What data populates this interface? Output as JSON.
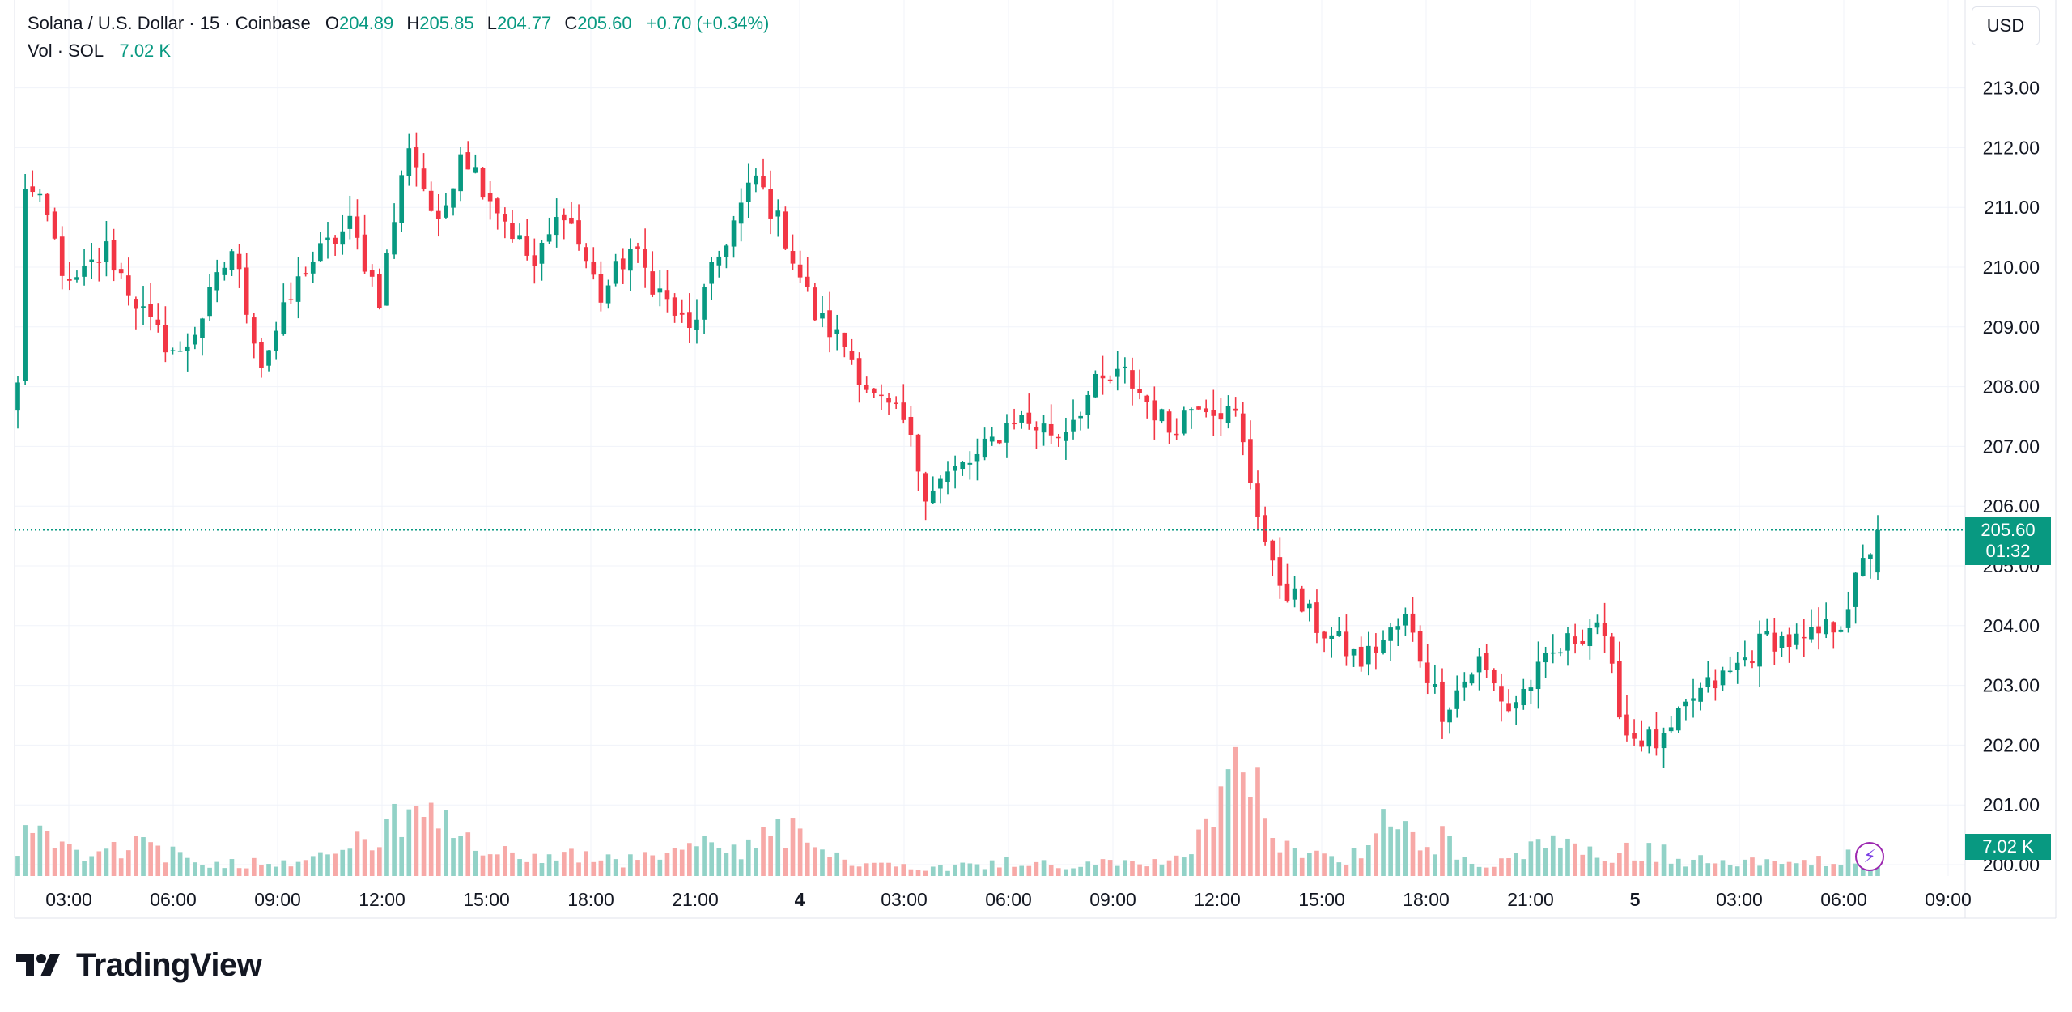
{
  "legend": {
    "symbol": "Solana / U.S. Dollar · 15 · Coinbase",
    "o_label": "O",
    "o_value": "204.89",
    "h_label": "H",
    "h_value": "205.85",
    "l_label": "L",
    "l_value": "204.77",
    "c_label": "C",
    "c_value": "205.60",
    "change": "+0.70 (+0.34%)",
    "vol_label": "Vol · SOL",
    "vol_value": "7.02 K"
  },
  "currency_button": "USD",
  "last_price": {
    "price": "205.60",
    "countdown": "01:32"
  },
  "volume_tag": "7.02 K",
  "brand": "TradingView",
  "colors": {
    "up": "#089981",
    "down": "#F23645",
    "up_vol": "#92D2C7",
    "down_vol": "#F7A9A7",
    "grid": "#F0F3FA"
  },
  "chart_data": {
    "type": "candlestick",
    "interval": "15",
    "y_ticks": [
      "213.00",
      "212.00",
      "211.00",
      "210.00",
      "209.00",
      "208.00",
      "207.00",
      "206.00",
      "205.00",
      "204.00",
      "203.00",
      "202.00",
      "201.00",
      "200.00"
    ],
    "ylim": [
      199.8,
      213.9
    ],
    "x_ticks": [
      "03:00",
      "06:00",
      "09:00",
      "12:00",
      "15:00",
      "18:00",
      "21:00",
      "4",
      "03:00",
      "06:00",
      "09:00",
      "12:00",
      "15:00",
      "18:00",
      "21:00",
      "5",
      "03:00",
      "06:00",
      "09:00"
    ],
    "bold_x_ticks": [
      "4",
      "5"
    ],
    "close_anchors": [
      [
        0,
        208.0
      ],
      [
        1,
        211.4
      ],
      [
        4,
        210.8
      ],
      [
        7,
        209.6
      ],
      [
        12,
        210.3
      ],
      [
        18,
        209.0
      ],
      [
        22,
        208.5
      ],
      [
        25,
        209.2
      ],
      [
        29,
        210.3
      ],
      [
        33,
        208.4
      ],
      [
        39,
        210.0
      ],
      [
        45,
        210.7
      ],
      [
        49,
        209.5
      ],
      [
        53,
        212.1
      ],
      [
        57,
        210.6
      ],
      [
        60,
        212.0
      ],
      [
        66,
        210.8
      ],
      [
        70,
        210.0
      ],
      [
        74,
        211.0
      ],
      [
        79,
        209.5
      ],
      [
        83,
        210.3
      ],
      [
        88,
        209.4
      ],
      [
        91,
        208.9
      ],
      [
        96,
        210.5
      ],
      [
        100,
        211.5
      ],
      [
        104,
        210.5
      ],
      [
        108,
        209.2
      ],
      [
        112,
        208.7
      ],
      [
        116,
        207.8
      ],
      [
        120,
        207.4
      ],
      [
        123,
        206.3
      ],
      [
        130,
        206.8
      ],
      [
        135,
        207.5
      ],
      [
        141,
        207.2
      ],
      [
        146,
        208.0
      ],
      [
        150,
        208.2
      ],
      [
        156,
        207.3
      ],
      [
        160,
        207.8
      ],
      [
        165,
        207.5
      ],
      [
        170,
        204.9
      ],
      [
        176,
        204.0
      ],
      [
        182,
        203.4
      ],
      [
        188,
        204.1
      ],
      [
        193,
        202.6
      ],
      [
        198,
        203.4
      ],
      [
        202,
        202.6
      ],
      [
        208,
        203.5
      ],
      [
        214,
        204.1
      ],
      [
        218,
        202.2
      ],
      [
        223,
        202.0
      ],
      [
        227,
        202.8
      ],
      [
        232,
        203.2
      ],
      [
        237,
        203.8
      ],
      [
        242,
        203.7
      ],
      [
        247,
        204.1
      ],
      [
        252,
        205.6
      ]
    ],
    "volume_anchors": [
      [
        0,
        20
      ],
      [
        2,
        77
      ],
      [
        4,
        50
      ],
      [
        8,
        30
      ],
      [
        17,
        40
      ],
      [
        24,
        14
      ],
      [
        34,
        18
      ],
      [
        38,
        20
      ],
      [
        43,
        33
      ],
      [
        47,
        42
      ],
      [
        51,
        63
      ],
      [
        54,
        70
      ],
      [
        58,
        58
      ],
      [
        63,
        30
      ],
      [
        69,
        24
      ],
      [
        74,
        26
      ],
      [
        81,
        18
      ],
      [
        88,
        24
      ],
      [
        91,
        40
      ],
      [
        97,
        28
      ],
      [
        105,
        60
      ],
      [
        108,
        25
      ],
      [
        114,
        18
      ],
      [
        118,
        15
      ],
      [
        125,
        10
      ],
      [
        132,
        16
      ],
      [
        137,
        20
      ],
      [
        141,
        10
      ],
      [
        148,
        16
      ],
      [
        153,
        18
      ],
      [
        157,
        22
      ],
      [
        162,
        56
      ],
      [
        164,
        120
      ],
      [
        168,
        95
      ],
      [
        171,
        48
      ],
      [
        174,
        30
      ],
      [
        178,
        22
      ],
      [
        182,
        26
      ],
      [
        185,
        60
      ],
      [
        189,
        50
      ],
      [
        193,
        45
      ],
      [
        196,
        20
      ],
      [
        201,
        18
      ],
      [
        208,
        40
      ],
      [
        215,
        20
      ],
      [
        218,
        30
      ],
      [
        222,
        30
      ],
      [
        227,
        18
      ],
      [
        232,
        20
      ],
      [
        238,
        14
      ],
      [
        243,
        18
      ],
      [
        248,
        24
      ],
      [
        252,
        18
      ]
    ]
  }
}
